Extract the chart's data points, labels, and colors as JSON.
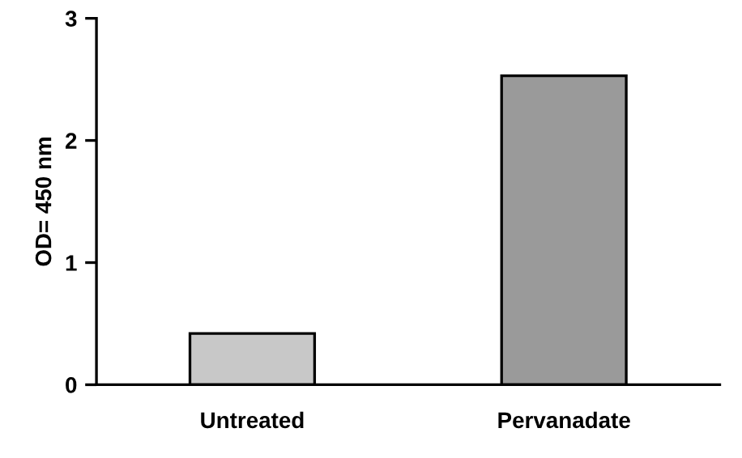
{
  "chart_data": {
    "type": "bar",
    "categories": [
      "Untreated",
      "Pervanadate"
    ],
    "values": [
      0.42,
      2.53
    ],
    "colors": [
      "#c8c8c8",
      "#9a9a9a"
    ],
    "ylabel": "OD= 450 nm",
    "ylim": [
      0,
      3
    ],
    "yticks": [
      0,
      1,
      2,
      3
    ],
    "grid": false
  }
}
